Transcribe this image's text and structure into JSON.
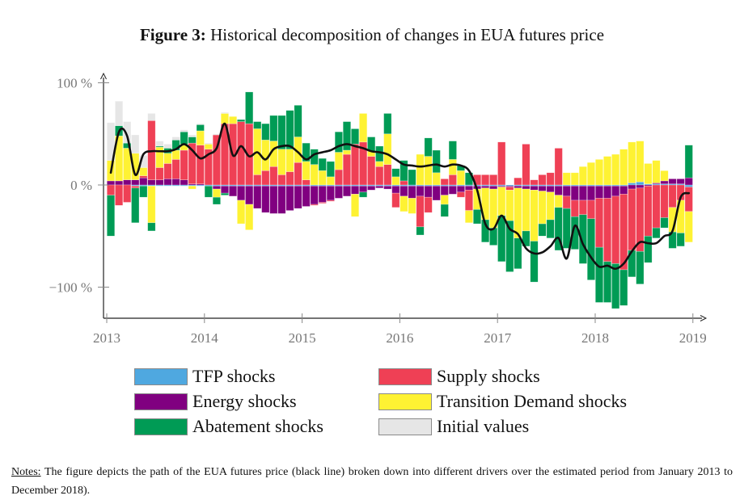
{
  "figure": {
    "label": "Figure 3:",
    "title": "Historical decomposition of changes in EUA futures price"
  },
  "notes": {
    "label": "Notes:",
    "text": " The figure depicts the path of the EUA futures price (black line) broken down into different drivers over the estimated period from January 2013 to December 2018)."
  },
  "chart_data": {
    "type": "bar",
    "stacked": true,
    "title": "Historical decomposition of changes in EUA futures price",
    "xlabel": "",
    "ylabel": "",
    "x_start": "2013-01",
    "x_end": "2018-12",
    "frequency": "monthly",
    "xlim": [
      2013,
      2019
    ],
    "ylim": [
      -130,
      100
    ],
    "x_ticks": [
      "2013",
      "2014",
      "2015",
      "2016",
      "2017",
      "2018",
      "2019"
    ],
    "y_ticks": [
      {
        "value": 100,
        "label": "100 %"
      },
      {
        "value": 0,
        "label": "0 %"
      },
      {
        "value": -100,
        "label": "−100 %"
      }
    ],
    "grid": false,
    "legend": {
      "placement": "bottom",
      "entries": [
        {
          "name": "TFP shocks",
          "color": "#4fa8e0"
        },
        {
          "name": "Supply shocks",
          "color": "#ef4055"
        },
        {
          "name": "Energy shocks",
          "color": "#800080"
        },
        {
          "name": "Transition Demand shocks",
          "color": "#fef233"
        },
        {
          "name": "Abatement shocks",
          "color": "#009b55"
        },
        {
          "name": "Initial values",
          "color": "#e6e6e6"
        }
      ]
    },
    "series": [
      {
        "name": "TFP shocks",
        "color": "#4fa8e0",
        "values": [
          0,
          0,
          0,
          -1,
          -1,
          -1,
          -1,
          -1,
          -1,
          -1,
          -1,
          -1,
          -1,
          -1,
          -1,
          -1,
          -1,
          -1,
          -1,
          -1,
          -1,
          -1,
          -1,
          -1,
          -1,
          -1,
          -1,
          -1,
          -1,
          -1,
          -1,
          -1,
          -1,
          -1,
          -1,
          -1,
          -1,
          -1,
          -1,
          -1,
          -1,
          -1,
          -1,
          -1,
          -1,
          -1,
          -1,
          -1,
          -1,
          -1,
          -1,
          -1,
          -1,
          -1,
          -1,
          -1,
          -1,
          -1,
          -1,
          -1,
          -1,
          -1,
          -1,
          -1,
          2,
          3,
          1,
          1,
          1,
          1,
          1,
          -2
        ]
      },
      {
        "name": "Energy shocks",
        "color": "#800080",
        "values": [
          4,
          4,
          5,
          5,
          7,
          5,
          5,
          6,
          6,
          5,
          1,
          1,
          0,
          -3,
          -7,
          -10,
          -14,
          -18,
          -22,
          -26,
          -27,
          -27,
          -24,
          -22,
          -20,
          -18,
          -16,
          -14,
          -12,
          -10,
          -8,
          -6,
          -4,
          -2,
          -3,
          -7,
          -10,
          -12,
          -10,
          -11,
          -14,
          -9,
          -8,
          -6,
          -4,
          -3,
          -2,
          -3,
          -1,
          -1,
          -2,
          -3,
          -4,
          -5,
          -6,
          -9,
          -10,
          -14,
          -14,
          -14,
          -12,
          -12,
          -10,
          -8,
          -4,
          -3,
          -1,
          1,
          3,
          5,
          5,
          7
        ]
      },
      {
        "name": "Supply shocks",
        "color": "#ef4055",
        "values": [
          -10,
          -20,
          -17,
          -2,
          2,
          58,
          12,
          15,
          19,
          29,
          40,
          38,
          35,
          49,
          60,
          60,
          62,
          60,
          10,
          14,
          18,
          10,
          13,
          22,
          5,
          -1,
          -1,
          -1,
          15,
          30,
          40,
          42,
          28,
          18,
          20,
          -14,
          4,
          0,
          -30,
          -15,
          0,
          6,
          10,
          -5,
          -20,
          10,
          10,
          10,
          42,
          -3,
          7,
          40,
          5,
          10,
          12,
          36,
          -12,
          -16,
          -14,
          -18,
          -48,
          -62,
          -66,
          -74,
          -60,
          -62,
          -49,
          -42,
          -32,
          -22,
          -15,
          -24
        ]
      },
      {
        "name": "Transition Demand shocks",
        "color": "#fef233",
        "values": [
          20,
          44,
          31,
          26,
          8,
          -36,
          20,
          10,
          9,
          6,
          -3,
          14,
          5,
          -8,
          10,
          7,
          -23,
          -25,
          45,
          30,
          25,
          25,
          22,
          25,
          18,
          20,
          14,
          8,
          17,
          4,
          -22,
          28,
          5,
          5,
          30,
          8,
          -15,
          -15,
          30,
          28,
          12,
          -9,
          15,
          14,
          -12,
          -20,
          -31,
          -38,
          -28,
          -30,
          -49,
          -41,
          -50,
          -32,
          -27,
          -12,
          12,
          12,
          18,
          22,
          25,
          28,
          30,
          35,
          40,
          40,
          20,
          22,
          10,
          -24,
          -32,
          -30
        ]
      },
      {
        "name": "Abatement shocks",
        "color": "#009b55",
        "values": [
          -40,
          10,
          5,
          -34,
          -11,
          -8,
          1,
          5,
          10,
          12,
          6,
          6,
          -11,
          -7,
          -2,
          0,
          2,
          31,
          7,
          16,
          25,
          33,
          38,
          31,
          18,
          15,
          12,
          15,
          20,
          28,
          15,
          -5,
          14,
          15,
          20,
          8,
          20,
          15,
          -8,
          18,
          22,
          -12,
          18,
          5,
          12,
          -14,
          -22,
          -17,
          -45,
          -50,
          -30,
          -15,
          -40,
          -12,
          -18,
          -42,
          -39,
          -32,
          -48,
          -60,
          -54,
          -40,
          -44,
          -35,
          -26,
          -32,
          -26,
          -10,
          -10,
          -16,
          -13,
          32
        ]
      },
      {
        "name": "Initial values",
        "color": "#e6e6e6",
        "values": [
          37,
          24,
          21,
          18,
          12,
          7,
          5,
          4,
          3,
          2,
          2,
          1,
          1,
          1,
          1,
          0,
          0,
          0,
          0,
          0,
          0,
          0,
          0,
          0,
          0,
          0,
          0,
          0,
          0,
          0,
          0,
          0,
          0,
          0,
          0,
          0,
          0,
          0,
          0,
          0,
          0,
          0,
          0,
          0,
          0,
          0,
          0,
          0,
          0,
          0,
          0,
          0,
          0,
          0,
          0,
          0,
          0,
          0,
          0,
          0,
          0,
          0,
          0,
          0,
          0,
          0,
          0,
          0,
          0,
          0,
          0,
          0
        ]
      }
    ],
    "line": {
      "name": "EUA futures price",
      "color": "#111111",
      "values": [
        12,
        52,
        48,
        10,
        30,
        33,
        33,
        33,
        35,
        40,
        34,
        26,
        30,
        36,
        60,
        29,
        38,
        28,
        32,
        25,
        35,
        38,
        38,
        32,
        25,
        30,
        32,
        34,
        38,
        40,
        38,
        36,
        33,
        32,
        30,
        25,
        20,
        19,
        18,
        19,
        20,
        18,
        20,
        19,
        14,
        -5,
        -38,
        -43,
        -30,
        -43,
        -48,
        -62,
        -67,
        -66,
        -60,
        -52,
        -72,
        -40,
        -58,
        -71,
        -80,
        -79,
        -82,
        -77,
        -65,
        -56,
        -57,
        -57,
        -50,
        -45,
        -12,
        -8
      ]
    }
  }
}
